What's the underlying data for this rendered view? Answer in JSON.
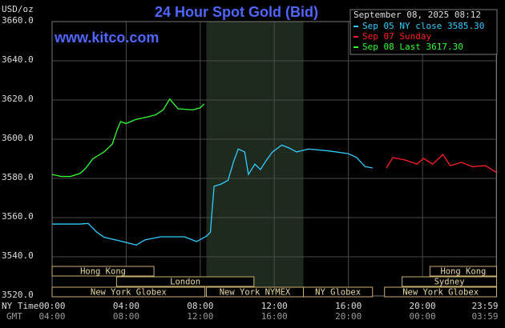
{
  "chart_data": {
    "type": "line",
    "title": "24 Hour Spot Gold (Bid)",
    "y_label": "USD/oz",
    "watermark": "www.kitco.com",
    "timestamp": "September 08, 2025 08:12",
    "x_row_labels": [
      "NY Time",
      "GMT"
    ],
    "xlim": [
      0,
      24
    ],
    "xticks": [
      {
        "value": 0,
        "label": "00:00"
      },
      {
        "value": 4,
        "label": "04:00"
      },
      {
        "value": 8,
        "label": "08:00"
      },
      {
        "value": 12,
        "label": "12:00"
      },
      {
        "value": 16,
        "label": "16:00"
      },
      {
        "value": 20,
        "label": "20:00"
      },
      {
        "value": 23.98,
        "label": "23:59"
      }
    ],
    "xticks_gmt": [
      "04:00",
      "08:00",
      "12:00",
      "16:00",
      "20:00",
      "00:00",
      "03:59"
    ],
    "ylim": [
      3520,
      3660
    ],
    "yticks": [
      {
        "value": 3520,
        "label": "3520.0"
      },
      {
        "value": 3540,
        "label": "3540.0"
      },
      {
        "value": 3560,
        "label": "3560.0"
      },
      {
        "value": 3580,
        "label": "3580.0"
      },
      {
        "value": 3600,
        "label": "3600.0"
      },
      {
        "value": 3620,
        "label": "3620.0"
      },
      {
        "value": 3640,
        "label": "3640.0"
      },
      {
        "value": 3660,
        "label": "3660.0"
      }
    ],
    "grid": true,
    "shaded_region": [
      8.33,
      13.57
    ],
    "series": [
      {
        "name": "Sep 05 NY close 3585.30",
        "color": "#33ccff",
        "x": [
          0,
          1.5,
          1.95,
          2.4,
          2.8,
          3.7,
          4.55,
          5,
          5.85,
          7.15,
          7.8,
          8.35,
          8.55,
          8.65,
          8.75,
          9.1,
          9.5,
          9.8,
          10.05,
          10.4,
          10.6,
          10.95,
          11.25,
          11.55,
          11.9,
          12.4,
          12.8,
          13.2,
          13.85,
          14.95,
          16,
          16.45,
          16.9,
          17.3
        ],
        "values": [
          3556.7,
          3556.7,
          3557,
          3552.7,
          3550,
          3548,
          3546,
          3548.6,
          3550.2,
          3550.2,
          3547.8,
          3550.6,
          3552.6,
          3565,
          3576,
          3577,
          3579,
          3588.6,
          3595,
          3593.5,
          3582,
          3587.3,
          3584.5,
          3589,
          3593.5,
          3597,
          3595.5,
          3593.5,
          3595,
          3594,
          3592.6,
          3590.6,
          3586,
          3585.3
        ]
      },
      {
        "name": "Sep 07 Sunday",
        "color": "#ff2020",
        "x": [
          18.05,
          18.4,
          19.05,
          19.7,
          20.05,
          20.55,
          21.1,
          21.5,
          22.1,
          22.7,
          23.4,
          24
        ],
        "values": [
          3585.3,
          3590.6,
          3589.4,
          3587.3,
          3590.2,
          3587.3,
          3592.2,
          3586.5,
          3588.2,
          3586,
          3586.5,
          3583
        ]
      },
      {
        "name": "Sep 08 Last 3617.30",
        "color": "#33ff33",
        "x": [
          0,
          0.5,
          1.0,
          1.5,
          1.8,
          2.2,
          2.8,
          3.25,
          3.5,
          3.7,
          4.0,
          4.5,
          5.2,
          5.6,
          6.0,
          6.35,
          6.8,
          7.6,
          8.0,
          8.2
        ],
        "values": [
          3582,
          3581,
          3581,
          3582.5,
          3585,
          3590,
          3593.5,
          3597.5,
          3604.5,
          3609,
          3608,
          3610,
          3611.5,
          3612.5,
          3615,
          3620.5,
          3615.5,
          3615,
          3616,
          3618
        ]
      }
    ],
    "sessions": [
      {
        "label": "Hong Kong",
        "row": 0,
        "start": 0,
        "end": 5.5
      },
      {
        "label": "Hong Kong",
        "row": 0,
        "start": 20.4,
        "end": 24
      },
      {
        "label": "London",
        "row": 1,
        "start": 3.48,
        "end": 10.9
      },
      {
        "label": "Sydney",
        "row": 1,
        "start": 18.9,
        "end": 24
      },
      {
        "label": "New York Globex",
        "row": 2,
        "start": 0,
        "end": 8.25
      },
      {
        "label": "New York NYMEX",
        "row": 2,
        "start": 8.33,
        "end": 13.57
      },
      {
        "label": "NY Globex",
        "row": 2,
        "start": 13.57,
        "end": 17.3
      },
      {
        "label": "New York Globex",
        "row": 2,
        "start": 17.95,
        "end": 24
      }
    ]
  }
}
